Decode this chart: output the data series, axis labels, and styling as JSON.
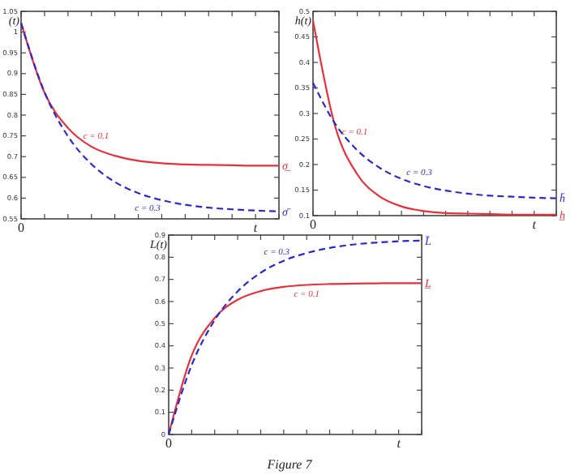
{
  "chart_data": [
    {
      "type": "line",
      "ylabel": "(t)",
      "categories": [
        "0",
        null,
        null,
        null,
        null,
        null,
        null,
        null,
        null,
        null,
        "t",
        null
      ],
      "ylim": [
        0.55,
        1.05
      ],
      "yticks": [
        0.55,
        0.6,
        0.65,
        0.7,
        0.75,
        0.8,
        0.85,
        0.9,
        0.95,
        1,
        1.05
      ],
      "series": [
        {
          "color": "#e8303a",
          "line_style": "solid",
          "values": [
            1.022,
            0.854,
            0.769,
            0.724,
            0.702,
            0.69,
            0.684,
            0.681,
            0.68,
            0.679,
            0.678,
            0.678
          ]
        },
        {
          "color": "#2b2bcc",
          "line_style": "dashed",
          "values": [
            1.022,
            0.855,
            0.749,
            0.682,
            0.639,
            0.612,
            0.595,
            0.584,
            0.577,
            0.573,
            0.57,
            0.568
          ]
        }
      ],
      "annotations": [
        "c = 0.1",
        "c = 0.3",
        {
          "text": "σ̲",
          "y": 0.678
        },
        {
          "text": "σ̄",
          "y": 0.568
        }
      ]
    },
    {
      "type": "line",
      "ylabel": "h(t)",
      "categories": [
        "0",
        null,
        null,
        null,
        null,
        null,
        null,
        null,
        null,
        null,
        "t",
        null
      ],
      "ylim": [
        0.1,
        0.5
      ],
      "yticks": [
        0.1,
        0.15,
        0.2,
        0.25,
        0.3,
        0.35,
        0.4,
        0.45,
        0.5
      ],
      "series": [
        {
          "color": "#e8303a",
          "line_style": "solid",
          "values": [
            0.482,
            0.275,
            0.181,
            0.138,
            0.118,
            0.109,
            0.105,
            0.104,
            0.103,
            0.102,
            0.102,
            0.102
          ]
        },
        {
          "color": "#2b2bcc",
          "line_style": "dashed",
          "values": [
            0.36,
            0.28,
            0.228,
            0.194,
            0.172,
            0.158,
            0.149,
            0.143,
            0.139,
            0.137,
            0.135,
            0.134
          ]
        }
      ],
      "annotations": [
        "c = 0.1",
        "c = 0.3",
        {
          "text": "h̄",
          "y": 0.134
        },
        {
          "text": "h̲",
          "y": 0.102
        }
      ]
    },
    {
      "type": "line",
      "ylabel": "L(t)",
      "categories": [
        "0",
        null,
        null,
        null,
        null,
        null,
        null,
        null,
        null,
        null,
        "t",
        null
      ],
      "ylim": [
        0,
        0.9
      ],
      "yticks": [
        0,
        0.1,
        0.2,
        0.3,
        0.4,
        0.5,
        0.6,
        0.7,
        0.8,
        0.9
      ],
      "series": [
        {
          "color": "#e8303a",
          "line_style": "solid",
          "values": [
            0,
            0.356,
            0.526,
            0.608,
            0.647,
            0.666,
            0.675,
            0.679,
            0.681,
            0.682,
            0.683,
            0.683
          ]
        },
        {
          "color": "#2b2bcc",
          "line_style": "dashed",
          "values": [
            0,
            0.313,
            0.516,
            0.646,
            0.73,
            0.784,
            0.819,
            0.842,
            0.857,
            0.866,
            0.872,
            0.875
          ]
        }
      ],
      "annotations": [
        "c = 0.1",
        "c = 0.3",
        {
          "text": "L̄",
          "y": 0.875
        },
        {
          "text": "L̲",
          "y": 0.683
        },
        "Figure 7"
      ]
    }
  ]
}
